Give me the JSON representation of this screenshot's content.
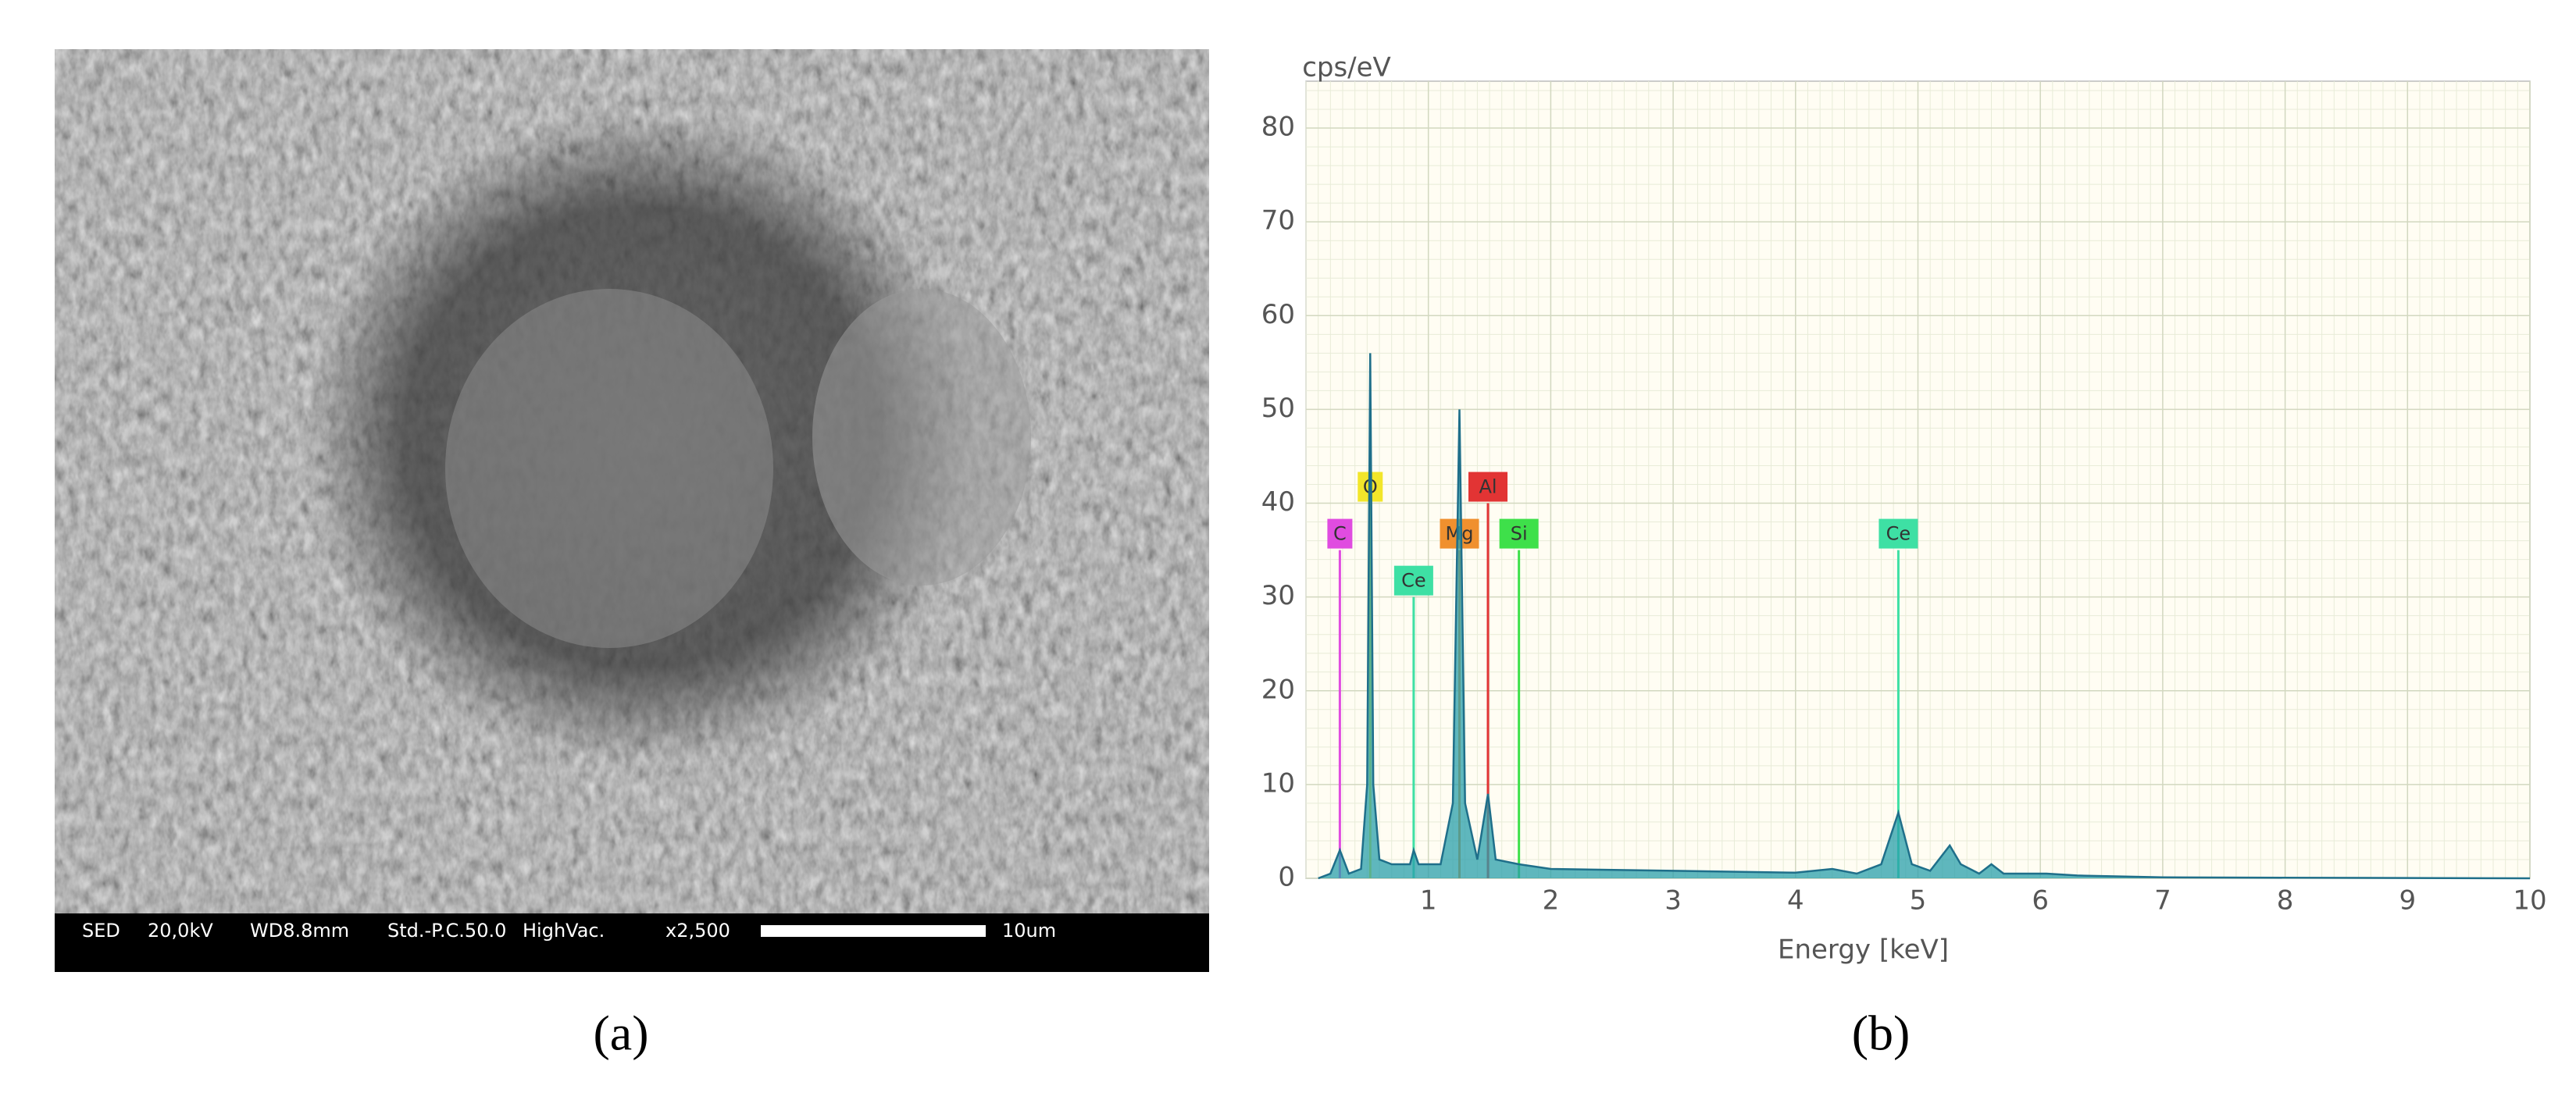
{
  "panels": {
    "a": {
      "label": "(a)",
      "info_bar": [
        "SED",
        "20,0kV",
        "WD8.8mm",
        "Std.-P.C.50.0",
        "HighVac.",
        "x2,500",
        "10um"
      ]
    },
    "b": {
      "label": "(b)"
    }
  },
  "chart_data": {
    "type": "area",
    "y_label": "cps/eV",
    "x_label": "Energy [keV]",
    "xlim": [
      0,
      10
    ],
    "ylim": [
      0,
      85
    ],
    "xticks": [
      1,
      2,
      3,
      4,
      5,
      6,
      7,
      8,
      9,
      10
    ],
    "yticks": [
      0,
      10,
      20,
      30,
      40,
      50,
      60,
      70,
      80
    ],
    "grid": true,
    "series": [
      {
        "color": "#2a9fab",
        "x": [
          0.1,
          0.2,
          0.277,
          0.35,
          0.45,
          0.5,
          0.525,
          0.55,
          0.6,
          0.7,
          0.85,
          0.88,
          0.92,
          1.1,
          1.2,
          1.254,
          1.3,
          1.4,
          1.487,
          1.55,
          1.74,
          2,
          3,
          4,
          4.3,
          4.5,
          4.7,
          4.84,
          4.95,
          5.1,
          5.26,
          5.35,
          5.5,
          5.6,
          5.7,
          6.05,
          6.3,
          7,
          10
        ],
        "values": [
          0,
          0.5,
          3,
          0.5,
          1,
          10,
          56,
          10,
          2,
          1.5,
          1.5,
          3,
          1.5,
          1.5,
          8,
          50,
          8,
          2,
          9,
          2,
          1.5,
          1,
          0.8,
          0.6,
          1,
          0.5,
          1.5,
          7,
          1.5,
          0.8,
          3.5,
          1.5,
          0.5,
          1.5,
          0.5,
          0.5,
          0.3,
          0.1,
          0
        ]
      }
    ],
    "annotations": [
      {
        "label": "C",
        "x": 0.277,
        "y": 35,
        "color": "#e04ce0"
      },
      {
        "label": "O",
        "x": 0.525,
        "y": 40,
        "color": "#f2e62a"
      },
      {
        "label": "Ce",
        "x": 0.88,
        "y": 30,
        "color": "#3ee0a4"
      },
      {
        "label": "Mg",
        "x": 1.254,
        "y": 35,
        "color": "#f0902e"
      },
      {
        "label": "Al",
        "x": 1.487,
        "y": 40,
        "color": "#e23434"
      },
      {
        "label": "Si",
        "x": 1.74,
        "y": 35,
        "color": "#3ee04a"
      },
      {
        "label": "Ce",
        "x": 4.84,
        "y": 35,
        "color": "#3ee0a4"
      }
    ]
  }
}
